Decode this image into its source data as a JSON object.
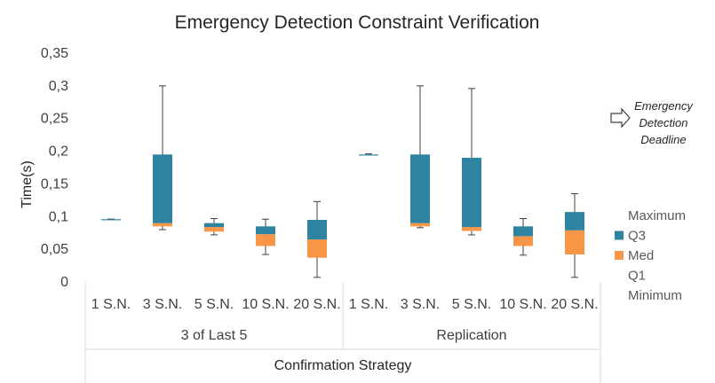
{
  "chart_data": {
    "type": "boxplot",
    "title": "Emergency Detection Constraint Verification",
    "ylabel": "Time(s)",
    "xlabel": "Confirmation Strategy",
    "ylim": [
      0,
      0.35
    ],
    "yticks": [
      "0",
      "0,05",
      "0,1",
      "0,15",
      "0,2",
      "0,25",
      "0,3",
      "0,35"
    ],
    "yticks_values": [
      0,
      0.05,
      0.1,
      0.15,
      0.2,
      0.25,
      0.3,
      0.35
    ],
    "grid": false,
    "groups": [
      {
        "label": "3 of Last 5",
        "boxes": [
          {
            "label": "1 S.N.",
            "min": 0.096,
            "q1": 0.096,
            "med": 0.096,
            "q3": 0.096,
            "max": 0.096
          },
          {
            "label": "3 S.N.",
            "min": 0.08,
            "q1": 0.085,
            "med": 0.09,
            "q3": 0.195,
            "max": 0.3
          },
          {
            "label": "5 S.N.",
            "min": 0.072,
            "q1": 0.077,
            "med": 0.084,
            "q3": 0.09,
            "max": 0.097
          },
          {
            "label": "10 S.N.",
            "min": 0.042,
            "q1": 0.055,
            "med": 0.073,
            "q3": 0.085,
            "max": 0.096
          },
          {
            "label": "20 S.N.",
            "min": 0.007,
            "q1": 0.037,
            "med": 0.065,
            "q3": 0.095,
            "max": 0.123
          }
        ]
      },
      {
        "label": "Replication",
        "boxes": [
          {
            "label": "1 S.N.",
            "min": 0.194,
            "q1": 0.195,
            "med": 0.195,
            "q3": 0.195,
            "max": 0.196
          },
          {
            "label": "3 S.N.",
            "min": 0.083,
            "q1": 0.085,
            "med": 0.09,
            "q3": 0.195,
            "max": 0.3
          },
          {
            "label": "5 S.N.",
            "min": 0.072,
            "q1": 0.078,
            "med": 0.084,
            "q3": 0.19,
            "max": 0.296
          },
          {
            "label": "10 S.N.",
            "min": 0.041,
            "q1": 0.055,
            "med": 0.07,
            "q3": 0.085,
            "max": 0.097
          },
          {
            "label": "20 S.N.",
            "min": 0.007,
            "q1": 0.042,
            "med": 0.079,
            "q3": 0.107,
            "max": 0.135
          }
        ]
      }
    ],
    "legend": {
      "placement": "right",
      "entries": [
        {
          "label": "Maximum",
          "swatch": "none"
        },
        {
          "label": "Q3",
          "swatch": "#2e84a0"
        },
        {
          "label": "Med",
          "swatch": "#f79646"
        },
        {
          "label": "Q1",
          "swatch": "none"
        },
        {
          "label": "Minimum",
          "swatch": "none"
        }
      ]
    },
    "annotation": {
      "lines": [
        "Emergency",
        "Detection",
        "Deadline"
      ],
      "icon": "arrow-right-outline-icon"
    },
    "colors": {
      "upper_box": "#2e84a0",
      "lower_box": "#f79646",
      "whisker": "#404040"
    }
  }
}
